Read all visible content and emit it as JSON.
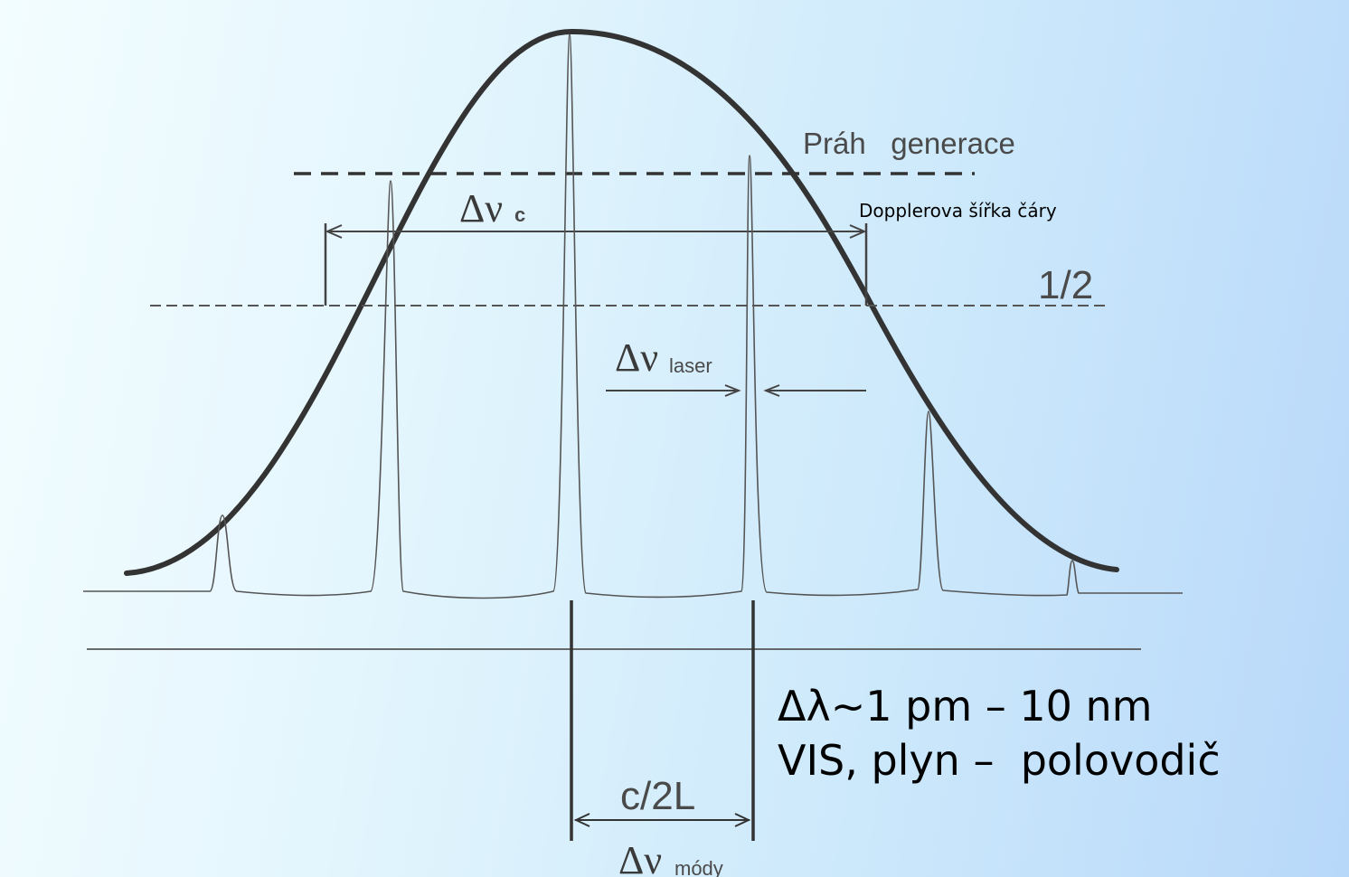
{
  "labels": {
    "threshold": "Práh   generace",
    "doppler": "Dopplerova šířka čáry",
    "half": "1/2",
    "delta_nu_symbol": "Δν",
    "delta_nu_c_sub": "c",
    "delta_nu_laser_sub": "laser",
    "mode_spacing": "c/2L",
    "delta_nu_mody_sub": "módy",
    "info_line_1": "Δλ~1 pm – 10 nm",
    "info_line_2": "VIS, plyn –  polovodič"
  },
  "colors": {
    "curve": "#3a3a3a",
    "lines": "#555555",
    "text": "#000000"
  }
}
